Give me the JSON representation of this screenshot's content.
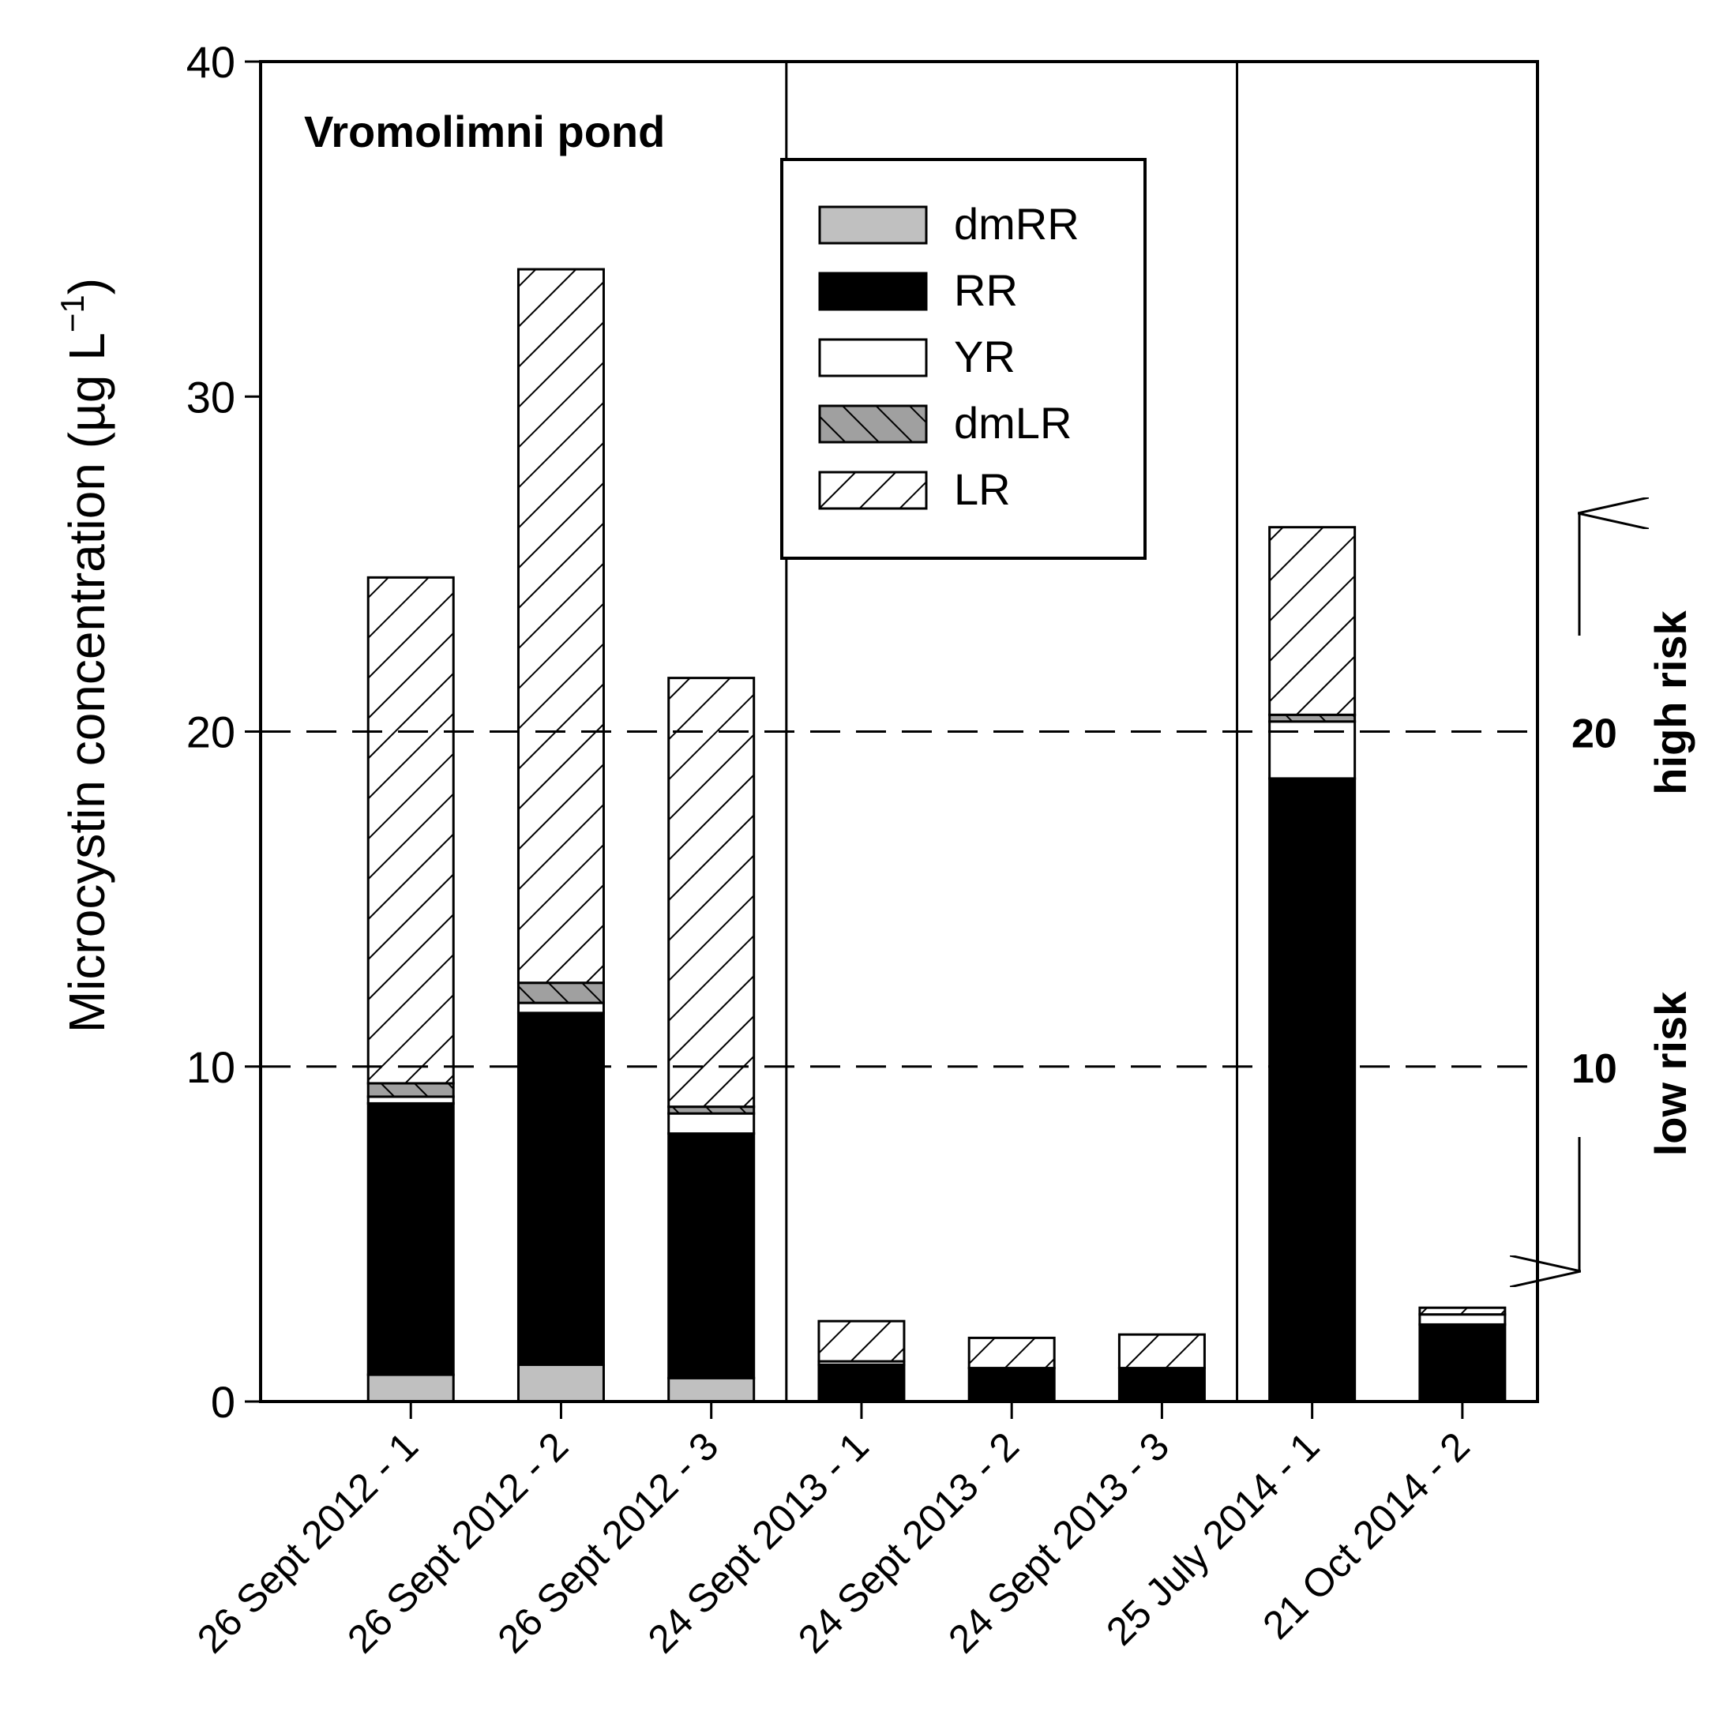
{
  "chart_data": {
    "type": "bar",
    "stacked": true,
    "title": "Vromolimni pond",
    "ylabel": "Microcystin concentration (µg L",
    "ylabel_superscript": "−1",
    "ylabel_close": ")",
    "ylim": [
      0,
      40
    ],
    "yticks": [
      "0",
      "10",
      "20",
      "30",
      "40"
    ],
    "categories": [
      "26 Sept 2012 - 1",
      "26 Sept 2012 - 2",
      "26 Sept 2012 - 3",
      "24 Sept 2013 - 1",
      "24 Sept 2013 - 2",
      "24 Sept 2013 - 3",
      "25 July 2014 - 1",
      "21 Oct 2014 - 2"
    ],
    "series": [
      {
        "name": "dmRR",
        "fill": "#c0c0c0",
        "pattern": "none",
        "values": [
          0.8,
          1.1,
          0.7,
          0,
          0,
          0,
          0,
          0
        ]
      },
      {
        "name": "RR",
        "fill": "#000000",
        "pattern": "none",
        "values": [
          8.1,
          10.5,
          7.3,
          1.1,
          1.0,
          1.0,
          18.6,
          2.3
        ]
      },
      {
        "name": "YR",
        "fill": "#ffffff",
        "pattern": "none",
        "values": [
          0.2,
          0.3,
          0.6,
          0.1,
          0,
          0,
          1.7,
          0.3
        ]
      },
      {
        "name": "dmLR",
        "fill": "#a0a0a0",
        "pattern": "forward-hatch",
        "values": [
          0.4,
          0.6,
          0.2,
          0,
          0,
          0,
          0.2,
          0
        ]
      },
      {
        "name": "LR",
        "fill": "#ffffff",
        "pattern": "back-hatch",
        "values": [
          15.1,
          21.3,
          12.8,
          1.2,
          0.9,
          1.0,
          5.6,
          0.2
        ]
      }
    ],
    "legend_position": "top-center",
    "reference_lines": [
      {
        "value": 10,
        "label": "10",
        "style": "dashed"
      },
      {
        "value": 20,
        "label": "20",
        "style": "dashed"
      }
    ],
    "risk_labels": {
      "high": "high risk",
      "low": "low risk"
    },
    "group_separators_after": [
      3,
      6
    ],
    "grid": false
  }
}
